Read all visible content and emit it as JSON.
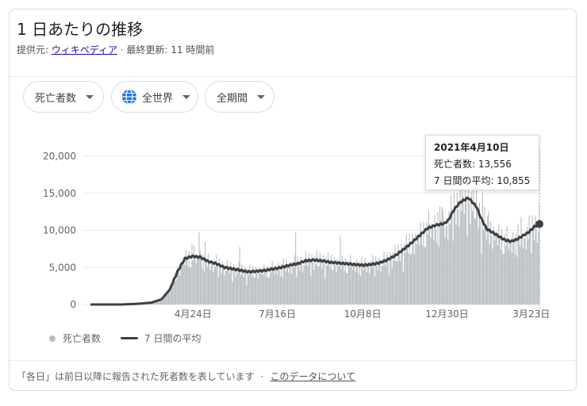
{
  "header": {
    "title": "1 日あたりの推移",
    "source_prefix": "提供元: ",
    "source_link": "ウィキペディア",
    "source_suffix": " · 最終更新: 11 時間前"
  },
  "filters": {
    "metric": "死亡者数",
    "region": "全世界",
    "period": "全期間"
  },
  "tooltip": {
    "date": "2021年4月10日",
    "line1": "死亡者数: 13,556",
    "line2": "7 日間の平均: 10,855"
  },
  "legend": {
    "bars_label": "死亡者数",
    "line_label": "7 日間の平均"
  },
  "footer": {
    "note": "「各日」は前日以降に報告された死者数を表しています",
    "link": "このデータについて"
  },
  "colors": {
    "bars": "#b9bdc1",
    "line": "#3c4043",
    "grid": "#e8eaed",
    "accent": "#1a73e8"
  },
  "chart_data": {
    "type": "bar",
    "title": "1 日あたりの推移",
    "xlabel": "",
    "ylabel": "",
    "ylim": [
      0,
      20000
    ],
    "y_ticks": [
      0,
      5000,
      10000,
      15000,
      20000
    ],
    "y_tick_labels": [
      "0",
      "5,000",
      "10,000",
      "15,000",
      "20,000"
    ],
    "x_tick_labels": [
      {
        "label": "4月24日",
        "index": 101
      },
      {
        "label": "7月16日",
        "index": 184
      },
      {
        "label": "10月8日",
        "index": 268
      },
      {
        "label": "12月30日",
        "index": 351
      },
      {
        "label": "3月23日",
        "index": 434
      }
    ],
    "x_range": [
      "2020-01-14",
      "2021-04-10"
    ],
    "legend_position": "bottom-left",
    "grid": true,
    "highlight": {
      "date": "2021年4月10日",
      "value": 13556,
      "avg": 10855
    },
    "series": [
      {
        "name": "死亡者数",
        "kind": "bar",
        "anchors": [
          [
            0,
            0
          ],
          [
            30,
            0
          ],
          [
            45,
            80
          ],
          [
            60,
            250
          ],
          [
            70,
            700
          ],
          [
            78,
            2000
          ],
          [
            86,
            4500
          ],
          [
            93,
            6200
          ],
          [
            100,
            6500
          ],
          [
            108,
            6400
          ],
          [
            116,
            5800
          ],
          [
            124,
            5500
          ],
          [
            132,
            5000
          ],
          [
            140,
            4800
          ],
          [
            148,
            4600
          ],
          [
            156,
            4400
          ],
          [
            164,
            4500
          ],
          [
            172,
            4600
          ],
          [
            180,
            4800
          ],
          [
            188,
            5000
          ],
          [
            196,
            5300
          ],
          [
            204,
            5500
          ],
          [
            212,
            5900
          ],
          [
            220,
            6000
          ],
          [
            228,
            5900
          ],
          [
            236,
            5700
          ],
          [
            244,
            5600
          ],
          [
            252,
            5500
          ],
          [
            260,
            5400
          ],
          [
            268,
            5300
          ],
          [
            276,
            5400
          ],
          [
            284,
            5600
          ],
          [
            292,
            6000
          ],
          [
            300,
            6600
          ],
          [
            308,
            7400
          ],
          [
            316,
            8300
          ],
          [
            324,
            9300
          ],
          [
            332,
            10300
          ],
          [
            340,
            10700
          ],
          [
            348,
            10900
          ],
          [
            352,
            11300
          ],
          [
            358,
            12800
          ],
          [
            364,
            13800
          ],
          [
            368,
            14100
          ],
          [
            372,
            14400
          ],
          [
            376,
            13800
          ],
          [
            380,
            13200
          ],
          [
            384,
            11800
          ],
          [
            390,
            10200
          ],
          [
            396,
            9700
          ],
          [
            402,
            9200
          ],
          [
            408,
            8700
          ],
          [
            414,
            8500
          ],
          [
            420,
            8800
          ],
          [
            426,
            9300
          ],
          [
            432,
            9800
          ],
          [
            437,
            10500
          ],
          [
            442,
            10855
          ]
        ],
        "spikes": [
          [
            100,
            8200
          ],
          [
            107,
            9700
          ],
          [
            113,
            8500
          ],
          [
            147,
            7800
          ],
          [
            202,
            9700
          ],
          [
            246,
            9300
          ],
          [
            342,
            12400
          ],
          [
            346,
            13200
          ],
          [
            358,
            15000
          ],
          [
            364,
            15800
          ],
          [
            372,
            15400
          ],
          [
            386,
            15100
          ],
          [
            392,
            12600
          ],
          [
            424,
            11800
          ],
          [
            442,
            13556
          ]
        ]
      },
      {
        "name": "7 日間の平均",
        "kind": "line",
        "anchors": [
          [
            0,
            0
          ],
          [
            30,
            0
          ],
          [
            45,
            80
          ],
          [
            60,
            250
          ],
          [
            70,
            700
          ],
          [
            78,
            2000
          ],
          [
            86,
            4500
          ],
          [
            93,
            6200
          ],
          [
            100,
            6500
          ],
          [
            108,
            6400
          ],
          [
            116,
            5800
          ],
          [
            124,
            5500
          ],
          [
            132,
            5000
          ],
          [
            140,
            4800
          ],
          [
            148,
            4600
          ],
          [
            156,
            4400
          ],
          [
            164,
            4500
          ],
          [
            172,
            4600
          ],
          [
            180,
            4800
          ],
          [
            188,
            5000
          ],
          [
            196,
            5300
          ],
          [
            204,
            5500
          ],
          [
            212,
            5900
          ],
          [
            220,
            6000
          ],
          [
            228,
            5900
          ],
          [
            236,
            5700
          ],
          [
            244,
            5600
          ],
          [
            252,
            5500
          ],
          [
            260,
            5400
          ],
          [
            268,
            5300
          ],
          [
            276,
            5400
          ],
          [
            284,
            5600
          ],
          [
            292,
            6000
          ],
          [
            300,
            6600
          ],
          [
            308,
            7400
          ],
          [
            316,
            8300
          ],
          [
            324,
            9300
          ],
          [
            332,
            10300
          ],
          [
            340,
            10700
          ],
          [
            348,
            10900
          ],
          [
            352,
            11300
          ],
          [
            358,
            12800
          ],
          [
            364,
            13800
          ],
          [
            368,
            14100
          ],
          [
            372,
            14400
          ],
          [
            376,
            13800
          ],
          [
            380,
            13200
          ],
          [
            384,
            11800
          ],
          [
            390,
            10200
          ],
          [
            396,
            9700
          ],
          [
            402,
            9200
          ],
          [
            408,
            8700
          ],
          [
            414,
            8500
          ],
          [
            420,
            8800
          ],
          [
            426,
            9300
          ],
          [
            432,
            9800
          ],
          [
            437,
            10500
          ],
          [
            442,
            10855
          ]
        ]
      }
    ]
  }
}
